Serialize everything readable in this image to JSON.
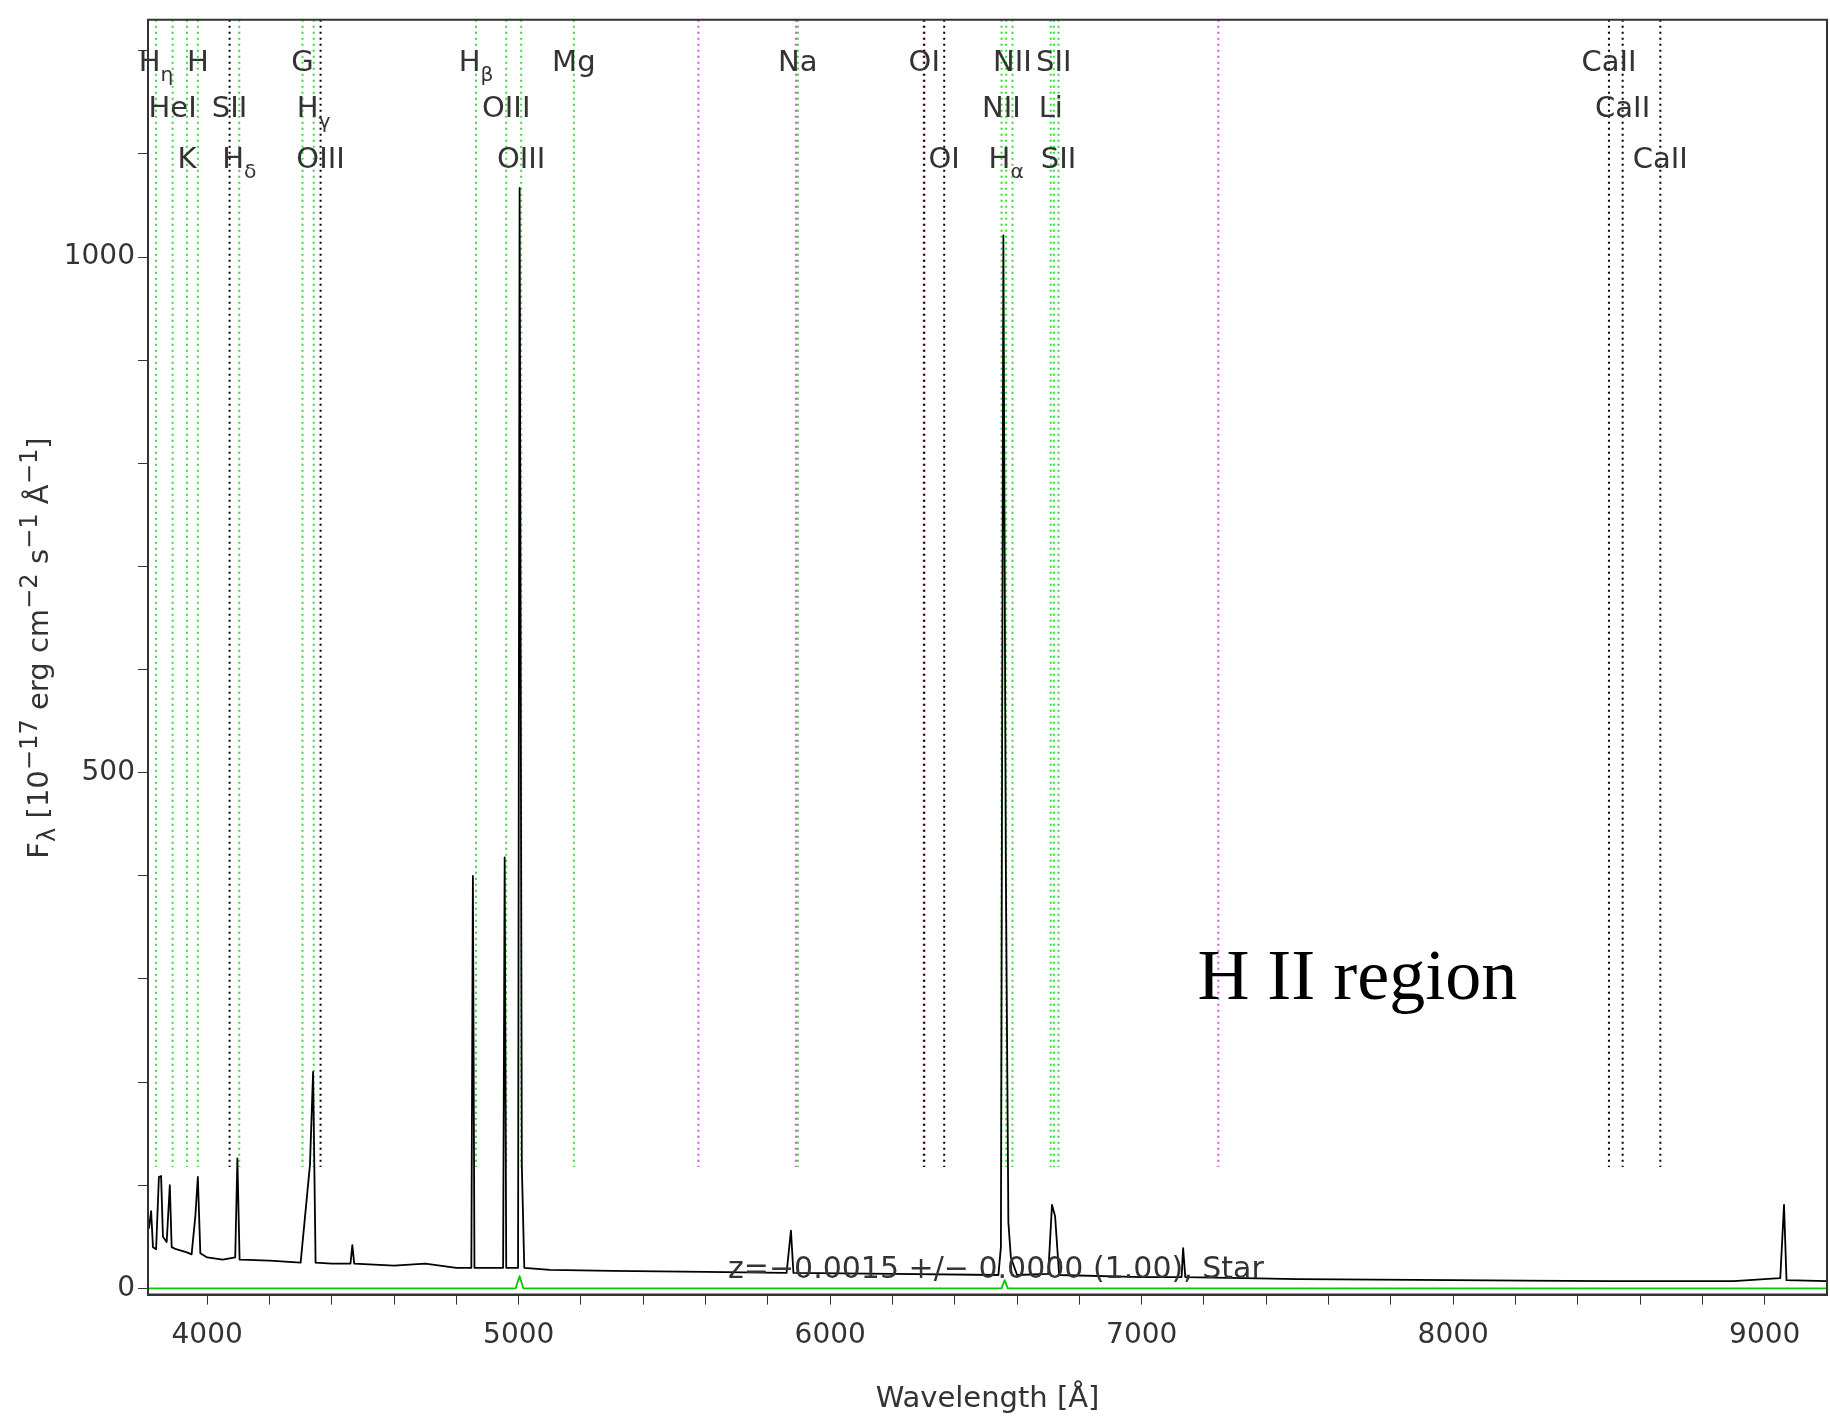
{
  "chart_data": {
    "type": "line",
    "xlabel": "Wavelength [Å]",
    "ylabel": "F$_{λ}$ [10$^{−17}$ erg cm$^{−2}$ s$^{−1}$ Å$^{−1}$]",
    "xlim": [
      3810,
      9200
    ],
    "ylim": [
      -6,
      1230
    ],
    "xticks": [
      {
        "value": 4000,
        "label": "4000"
      },
      {
        "value": 4200,
        "label": null
      },
      {
        "value": 4400,
        "label": null
      },
      {
        "value": 4600,
        "label": null
      },
      {
        "value": 4800,
        "label": null
      },
      {
        "value": 5000,
        "label": "5000"
      },
      {
        "value": 5200,
        "label": null
      },
      {
        "value": 5400,
        "label": null
      },
      {
        "value": 5600,
        "label": null
      },
      {
        "value": 5800,
        "label": null
      },
      {
        "value": 6000,
        "label": "6000"
      },
      {
        "value": 6200,
        "label": null
      },
      {
        "value": 6400,
        "label": null
      },
      {
        "value": 6600,
        "label": null
      },
      {
        "value": 6800,
        "label": null
      },
      {
        "value": 7000,
        "label": "7000"
      },
      {
        "value": 7200,
        "label": null
      },
      {
        "value": 7400,
        "label": null
      },
      {
        "value": 7600,
        "label": null
      },
      {
        "value": 7800,
        "label": null
      },
      {
        "value": 8000,
        "label": "8000"
      },
      {
        "value": 8200,
        "label": null
      },
      {
        "value": 8400,
        "label": null
      },
      {
        "value": 8600,
        "label": null
      },
      {
        "value": 8800,
        "label": null
      },
      {
        "value": 9000,
        "label": "9000"
      }
    ],
    "yticks": [
      0,
      {
        "value": 100,
        "label": null
      },
      {
        "value": 200,
        "label": null
      },
      {
        "value": 300,
        "label": null
      },
      {
        "value": 400,
        "label": null
      },
      500,
      {
        "value": 600,
        "label": null
      },
      {
        "value": 700,
        "label": null
      },
      {
        "value": 800,
        "label": null
      },
      {
        "value": 900,
        "label": null
      },
      1000,
      {
        "value": 1100,
        "label": null
      },
      {
        "value": 1200,
        "label": null
      }
    ],
    "grid": false,
    "legend": false,
    "marker": "none",
    "series": [
      {
        "color": "#000000",
        "x": [
          3813,
          3820,
          3826,
          3836,
          3845,
          3852,
          3858,
          3870,
          3880,
          3886,
          3900,
          3935,
          3950,
          3962,
          3970,
          3978,
          4000,
          4050,
          4090,
          4097,
          4104,
          4200,
          4300,
          4330,
          4340,
          4348,
          4400,
          4460,
          4466,
          4472,
          4600,
          4700,
          4800,
          4848,
          4853,
          4858,
          4950,
          4955,
          4960,
          4998,
          5003,
          5010,
          5018,
          5100,
          5300,
          5600,
          5860,
          5874,
          5882,
          6200,
          6540,
          6548,
          6556,
          6564,
          6572,
          6580,
          6600,
          6700,
          6712,
          6722,
          6735,
          7000,
          7128,
          7133,
          7140,
          7500,
          8000,
          8500,
          8900,
          9050,
          9062,
          9070,
          9200
        ],
        "values": [
          58,
          75,
          40,
          38,
          108,
          109,
          50,
          45,
          100,
          40,
          38,
          35,
          33,
          70,
          108,
          34,
          30,
          28,
          30,
          126,
          28,
          27,
          25,
          120,
          210,
          25,
          24,
          24,
          42,
          24,
          22,
          24,
          20,
          20,
          400,
          20,
          20,
          418,
          20,
          20,
          1067,
          120,
          20,
          18,
          17,
          16,
          15,
          56,
          15,
          14,
          13,
          40,
          1021,
          400,
          64,
          30,
          13,
          14,
          81,
          70,
          13,
          11,
          11,
          39,
          11,
          9,
          8,
          7,
          7,
          10,
          81,
          8,
          7
        ]
      },
      {
        "color": "#00cc00",
        "x": [
          3813,
          4990,
          5003,
          5015,
          6550,
          6560,
          6570,
          9200
        ],
        "values": [
          0,
          0,
          12,
          0,
          0,
          8,
          0,
          0
        ]
      }
    ],
    "ref_lines": [
      {
        "axis": "x",
        "value": 3836,
        "color": "#33dd33",
        "line_style": "dotted"
      },
      {
        "axis": "x",
        "value": 3889,
        "color": "#33dd33",
        "line_style": "dotted"
      },
      {
        "axis": "x",
        "value": 3935,
        "color": "#33dd33",
        "line_style": "dotted"
      },
      {
        "axis": "x",
        "value": 3970,
        "color": "#33dd33",
        "line_style": "dotted"
      },
      {
        "axis": "x",
        "value": 4072,
        "color": "#000000",
        "line_style": "dotted"
      },
      {
        "axis": "x",
        "value": 4103,
        "color": "#33dd33",
        "line_style": "dotted"
      },
      {
        "axis": "x",
        "value": 4306,
        "color": "#33dd33",
        "line_style": "dotted"
      },
      {
        "axis": "x",
        "value": 4342,
        "color": "#33dd33",
        "line_style": "dotted"
      },
      {
        "axis": "x",
        "value": 4364,
        "color": "#000000",
        "line_style": "dotted"
      },
      {
        "axis": "x",
        "value": 4863,
        "color": "#33dd33",
        "line_style": "dotted"
      },
      {
        "axis": "x",
        "value": 4960,
        "color": "#33dd33",
        "line_style": "dotted"
      },
      {
        "axis": "x",
        "value": 5008,
        "color": "#33dd33",
        "line_style": "dotted"
      },
      {
        "axis": "x",
        "value": 5177,
        "color": "#33dd33",
        "line_style": "dotted"
      },
      {
        "axis": "x",
        "value": 5577,
        "color": "#ee44ee",
        "line_style": "dotted"
      },
      {
        "axis": "x",
        "value": 5890,
        "color": "#ee44ee",
        "line_style": "dotted"
      },
      {
        "axis": "x",
        "value": 5896,
        "color": "#33dd33",
        "line_style": "dotted"
      },
      {
        "axis": "x",
        "value": 6300,
        "color": "#ee44ee",
        "line_style": "dotted"
      },
      {
        "axis": "x",
        "value": 6302,
        "color": "#000000",
        "line_style": "dotted"
      },
      {
        "axis": "x",
        "value": 6366,
        "color": "#000000",
        "line_style": "dotted"
      },
      {
        "axis": "x",
        "value": 6550,
        "color": "#33dd33",
        "line_style": "dotted"
      },
      {
        "axis": "x",
        "value": 6565,
        "color": "#33dd33",
        "line_style": "dotted"
      },
      {
        "axis": "x",
        "value": 6585,
        "color": "#33dd33",
        "line_style": "dotted"
      },
      {
        "axis": "x",
        "value": 6708,
        "color": "#33dd33",
        "line_style": "dotted"
      },
      {
        "axis": "x",
        "value": 6718,
        "color": "#33dd33",
        "line_style": "dotted"
      },
      {
        "axis": "x",
        "value": 6733,
        "color": "#33dd33",
        "line_style": "dotted"
      },
      {
        "axis": "x",
        "value": 7246,
        "color": "#ee44ee",
        "line_style": "dotted"
      },
      {
        "axis": "x",
        "value": 8500,
        "color": "#000000",
        "line_style": "dotted"
      },
      {
        "axis": "x",
        "value": 8544,
        "color": "#000000",
        "line_style": "dotted"
      },
      {
        "axis": "x",
        "value": 8665,
        "color": "#000000",
        "line_style": "dotted"
      }
    ],
    "annotations": [
      "z=−0.0015 +/− 0.0000 (1.00), Star",
      "H II region",
      {
        "text": "H$_{η}$",
        "x": 3836,
        "y": 1188
      },
      {
        "text": "HeI",
        "x": 3889,
        "y": 1143
      },
      {
        "text": "K",
        "x": 3935,
        "y": 1094
      },
      {
        "text": "H",
        "x": 3970,
        "y": 1188
      },
      {
        "text": "SII",
        "x": 4072,
        "y": 1143
      },
      {
        "text": "H$_{δ}$",
        "x": 4103,
        "y": 1094
      },
      {
        "text": "G",
        "x": 4306,
        "y": 1188
      },
      {
        "text": "H$_{γ}$",
        "x": 4342,
        "y": 1143
      },
      {
        "text": "OIII",
        "x": 4364,
        "y": 1094
      },
      {
        "text": "H$_{β}$",
        "x": 4863,
        "y": 1188
      },
      {
        "text": "OIII",
        "x": 4960,
        "y": 1143
      },
      {
        "text": "OIII",
        "x": 5008,
        "y": 1094
      },
      {
        "text": "Mg",
        "x": 5177,
        "y": 1188
      },
      {
        "text": "Na",
        "x": 5896,
        "y": 1188
      },
      {
        "text": "OI",
        "x": 6302,
        "y": 1188
      },
      {
        "text": "OI",
        "x": 6366,
        "y": 1094
      },
      {
        "text": "NII",
        "x": 6550,
        "y": 1143
      },
      {
        "text": "H$_{α}$",
        "x": 6565,
        "y": 1094
      },
      {
        "text": "NII",
        "x": 6585,
        "y": 1188
      },
      {
        "text": "Li",
        "x": 6708,
        "y": 1143
      },
      {
        "text": "SII",
        "x": 6718,
        "y": 1188
      },
      {
        "text": "SII",
        "x": 6733,
        "y": 1094
      },
      {
        "text": "CaII",
        "x": 8500,
        "y": 1188
      },
      {
        "text": "CaII",
        "x": 8544,
        "y": 1143
      },
      {
        "text": "CaII",
        "x": 8665,
        "y": 1094
      }
    ]
  }
}
